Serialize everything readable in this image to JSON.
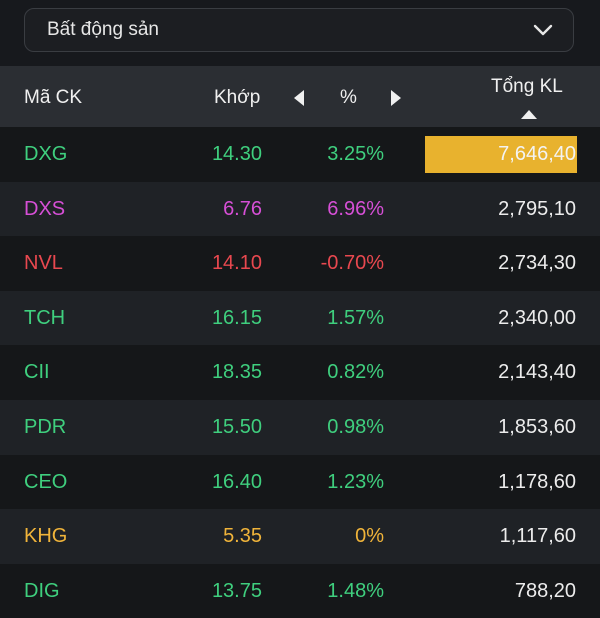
{
  "dropdown": {
    "label": "Bất động sản"
  },
  "header": {
    "code": "Mã CK",
    "match": "Khớp",
    "percent": "%",
    "total_volume": "Tổng KL"
  },
  "colors": {
    "up": "#3fcf7e",
    "ceiling": "#d64fd6",
    "down": "#e8484f",
    "reference": "#f0b43a",
    "highlight": "#e8b22e"
  },
  "rows": [
    {
      "code": "DXG",
      "match": "14.30",
      "pct": "3.25%",
      "volume": "7,646,40",
      "status": "up",
      "highlight": true
    },
    {
      "code": "DXS",
      "match": "6.76",
      "pct": "6.96%",
      "volume": "2,795,10",
      "status": "ceiling"
    },
    {
      "code": "NVL",
      "match": "14.10",
      "pct": "-0.70%",
      "volume": "2,734,30",
      "status": "down"
    },
    {
      "code": "TCH",
      "match": "16.15",
      "pct": "1.57%",
      "volume": "2,340,00",
      "status": "up"
    },
    {
      "code": "CII",
      "match": "18.35",
      "pct": "0.82%",
      "volume": "2,143,40",
      "status": "up"
    },
    {
      "code": "PDR",
      "match": "15.50",
      "pct": "0.98%",
      "volume": "1,853,60",
      "status": "up"
    },
    {
      "code": "CEO",
      "match": "16.40",
      "pct": "1.23%",
      "volume": "1,178,60",
      "status": "up"
    },
    {
      "code": "KHG",
      "match": "5.35",
      "pct": "0%",
      "volume": "1,117,60",
      "status": "reference"
    },
    {
      "code": "DIG",
      "match": "13.75",
      "pct": "1.48%",
      "volume": "788,20",
      "status": "up"
    }
  ]
}
